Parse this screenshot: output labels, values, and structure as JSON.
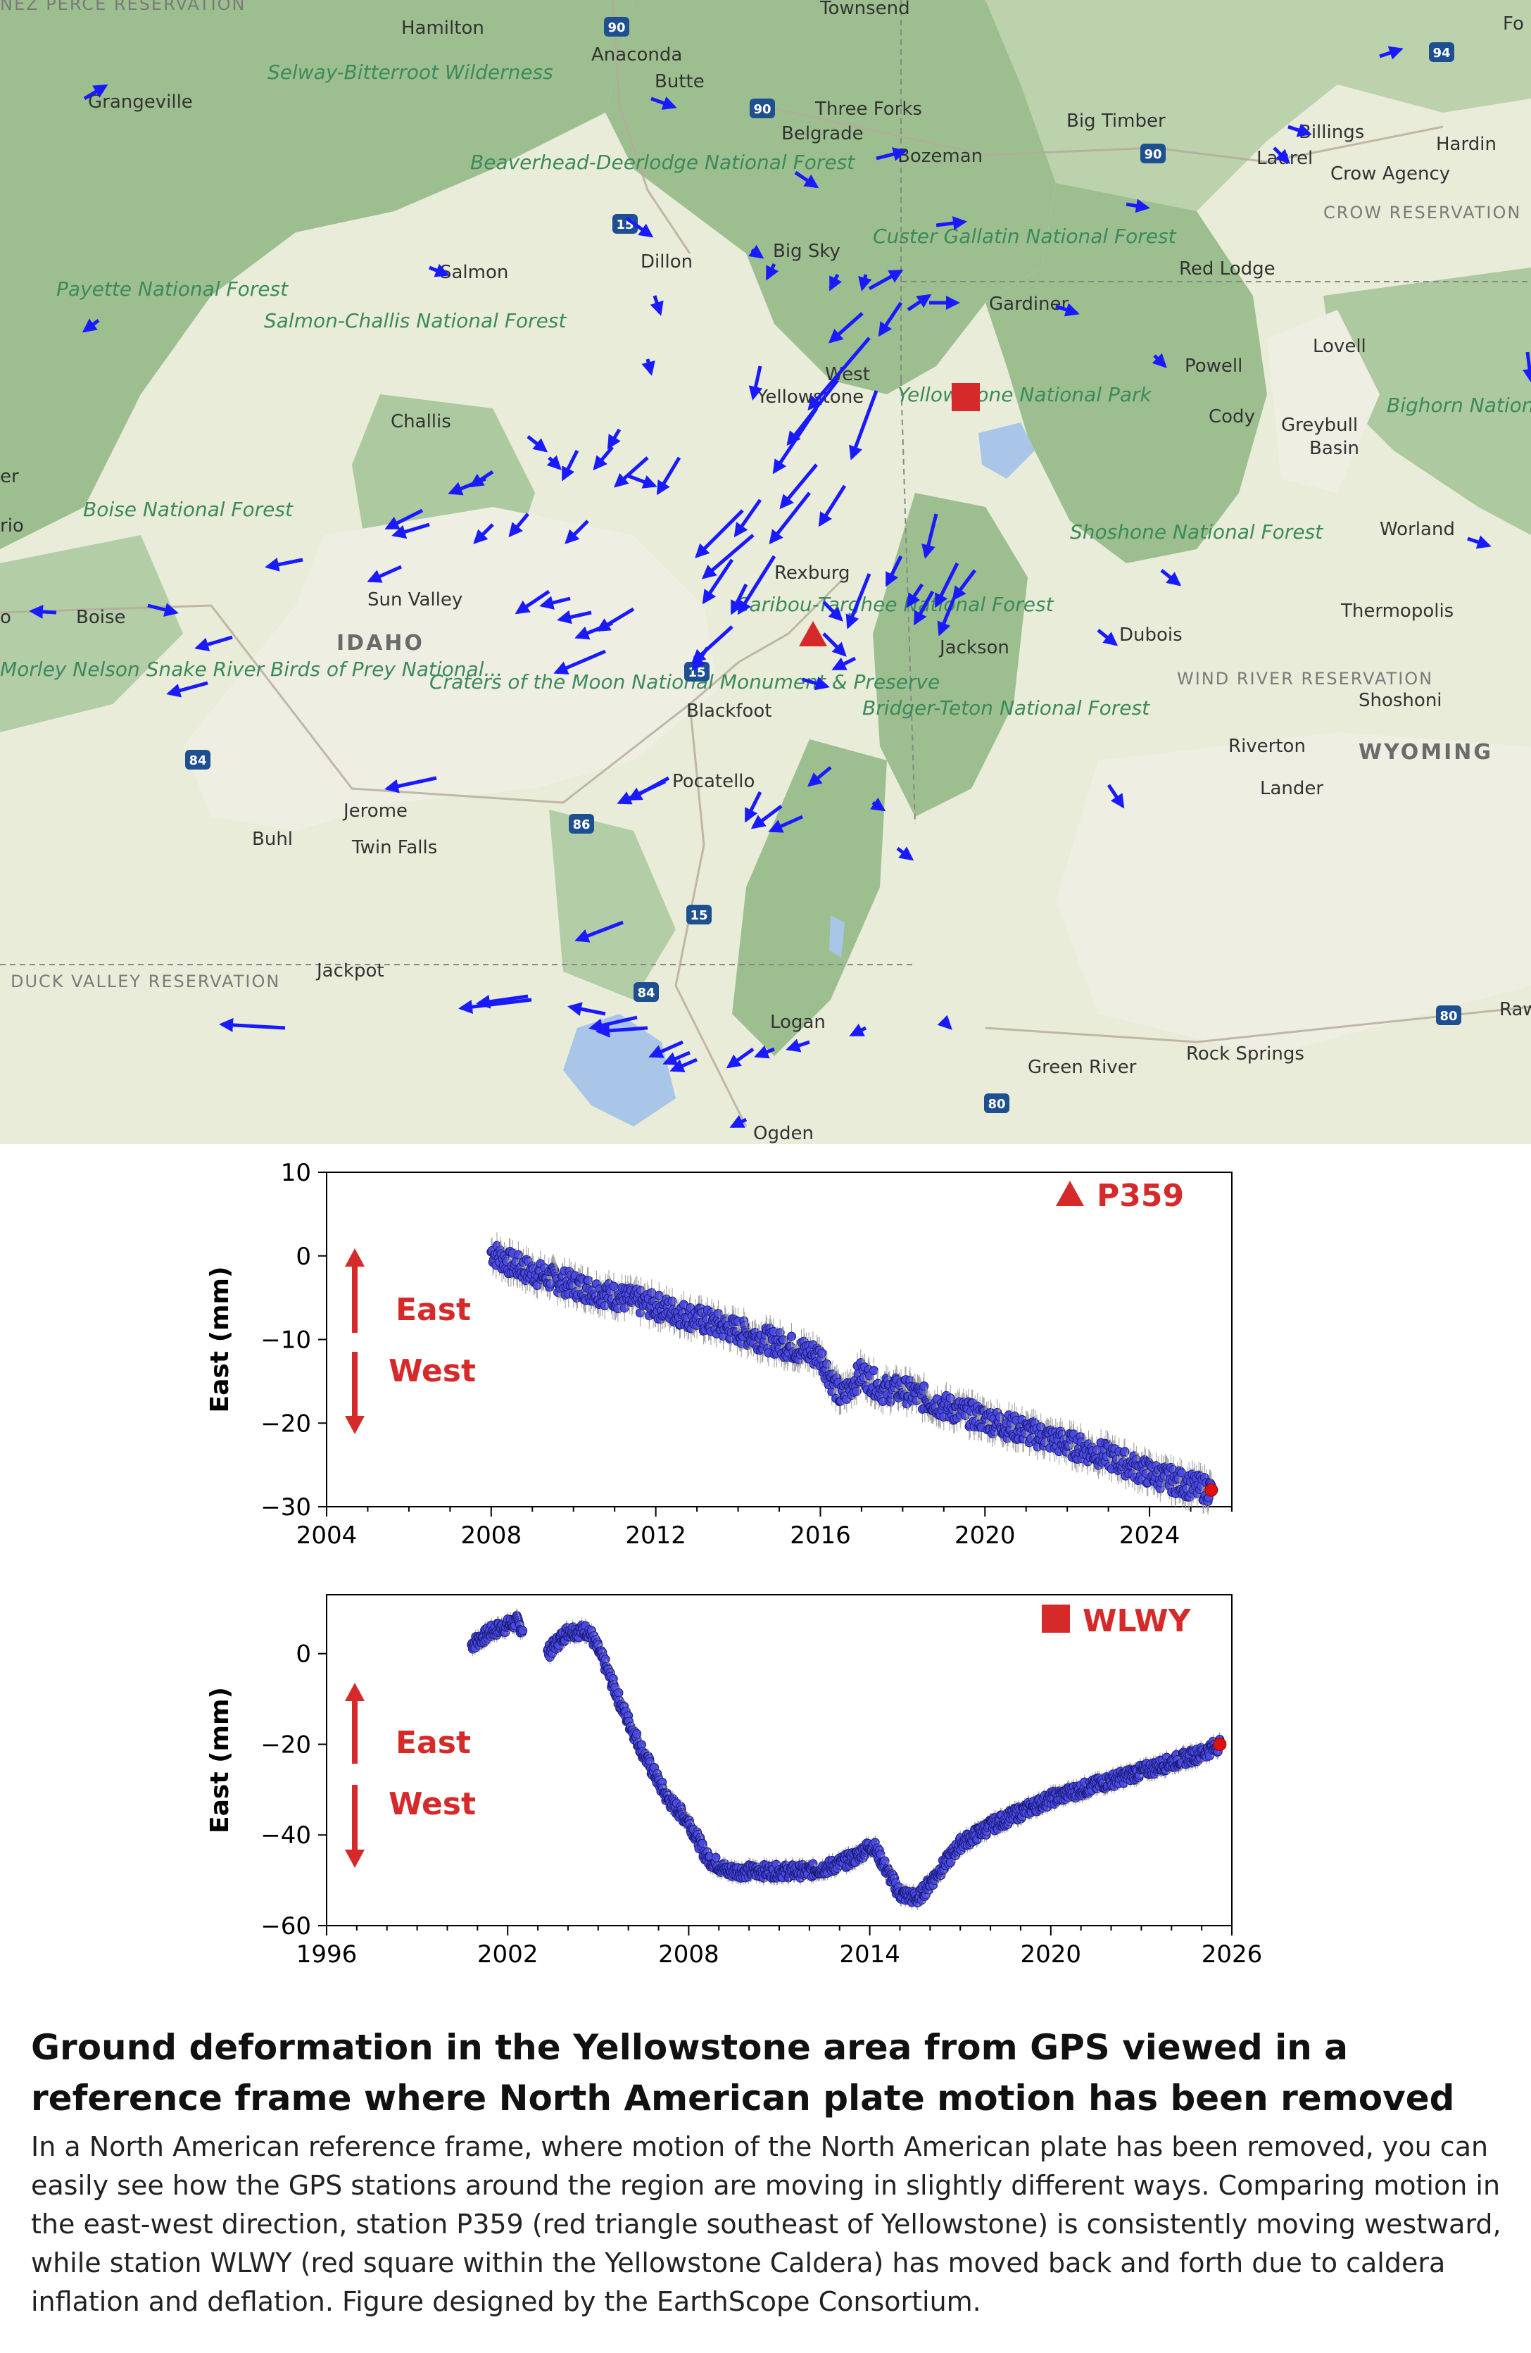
{
  "map": {
    "places": [
      "Hamilton",
      "Townsend",
      "Anaconda",
      "Butte",
      "Grangeville",
      "Three Forks",
      "Belgrade",
      "Bozeman",
      "Big Timber",
      "Billings",
      "Hardin",
      "Laurel",
      "Crow Agency",
      "Salmon",
      "Dillon",
      "Big Sky",
      "Gardiner",
      "Red Lodge",
      "Lovell",
      "Powell",
      "Cody",
      "Greybull",
      "Basin",
      "Challis",
      "West",
      "Yellowstone",
      "Worland",
      "Rexburg",
      "Thermopolis",
      "Boise",
      "Sun Valley",
      "Jackson",
      "Dubois",
      "Blackfoot",
      "Shoshoni",
      "Riverton",
      "Lander",
      "Pocatello",
      "Jerome",
      "Twin Falls",
      "Buhl",
      "Jackpot",
      "Logan",
      "Rock Springs",
      "Green River",
      "Ogden",
      "Fo",
      "Raw"
    ],
    "regions": [
      "Selway-Bitterroot Wilderness",
      "Beaverhead-Deerlodge National Forest",
      "Custer Gallatin National Forest",
      "Payette National Forest",
      "Salmon-Challis National Forest",
      "Yellowstone National Park",
      "Bighorn National Forest",
      "Boise National Forest",
      "Shoshone National Forest",
      "Caribou-Targhee National Forest",
      "Craters of the Moon National Monument & Preserve",
      "Bridger-Teton National Forest",
      "Morley Nelson Snake River Birds of Prey National..."
    ],
    "admin_labels": [
      "IDAHO",
      "WYOMING",
      "WIND RIVER RESERVATION",
      "CROW RESERVATION",
      "DUCK VALLEY RESERVATION",
      "NEZ PERCE RESERVATION"
    ],
    "partial_labels": [
      "er",
      "rio",
      "o"
    ],
    "highways": [
      "90",
      "94",
      "15",
      "84",
      "86",
      "80"
    ],
    "arrow_color": "#1a1aff",
    "marker_color": "#d62a2a",
    "stations": [
      {
        "name": "P359",
        "marker": "triangle"
      },
      {
        "name": "WLWY",
        "marker": "square"
      }
    ]
  },
  "charts": {
    "top": {
      "station": "P359",
      "marker": "triangle",
      "ylabel": "East (mm)",
      "ylim": [
        -30,
        10
      ],
      "yticks": [
        "10",
        "0",
        "−10",
        "−20",
        "−30"
      ],
      "xlim": [
        2004,
        2026
      ],
      "xticks": [
        "2004",
        "2008",
        "2012",
        "2016",
        "2020",
        "2024"
      ],
      "east_label": "East",
      "west_label": "West"
    },
    "bottom": {
      "station": "WLWY",
      "marker": "square",
      "ylabel": "East (mm)",
      "ylim": [
        -60,
        13
      ],
      "yticks": [
        "0",
        "−20",
        "−40",
        "−60"
      ],
      "xlim": [
        1996,
        2026
      ],
      "xticks": [
        "1996",
        "2002",
        "2008",
        "2014",
        "2020",
        "2026"
      ],
      "east_label": "East",
      "west_label": "West"
    }
  },
  "chart_data": [
    {
      "type": "scatter",
      "title": "P359",
      "ylabel": "East (mm)",
      "xlim": [
        2004,
        2026
      ],
      "ylim": [
        -30,
        10
      ],
      "series": [
        {
          "x": [
            2008.0,
            2008.5,
            2009,
            2010,
            2011,
            2012,
            2013,
            2014,
            2015,
            2016,
            2016.5,
            2017,
            2017.5,
            2018,
            2019,
            2020,
            2021,
            2022,
            2023,
            2024,
            2025,
            2025.5
          ],
          "y": [
            0.5,
            -1,
            -2,
            -3.5,
            -4.8,
            -6,
            -7.5,
            -9,
            -10.5,
            -12,
            -17,
            -14,
            -16,
            -16,
            -18,
            -19.5,
            -21,
            -22.5,
            -24,
            -26,
            -27.5,
            -28
          ]
        }
      ],
      "grid": false
    },
    {
      "type": "scatter",
      "title": "WLWY",
      "ylabel": "East (mm)",
      "xlim": [
        1996,
        2026
      ],
      "ylim": [
        -60,
        13
      ],
      "series": [
        {
          "x": [
            2000.8,
            2001.5,
            2002.3,
            2002.8,
            2003.3,
            2004.0,
            2004.7,
            2005.2,
            2005.8,
            2006.5,
            2007.3,
            2008.0,
            2008.6,
            2009.3,
            2010.0,
            2011.0,
            2012.0,
            2012.7,
            2013.5,
            2014.1,
            2014.5,
            2015.0,
            2015.6,
            2016.3,
            2017.0,
            2018.0,
            2019.0,
            2020.0,
            2021.0,
            2022.0,
            2023.0,
            2024.0,
            2025.0,
            2025.6
          ],
          "y": [
            2,
            5,
            7,
            3,
            0,
            5,
            5,
            -2,
            -12,
            -22,
            -32,
            -37,
            -45,
            -48,
            -48,
            -48,
            -48,
            -47,
            -45,
            -42,
            -47,
            -53,
            -54,
            -48,
            -42,
            -38,
            -35,
            -32,
            -30,
            -28,
            -26,
            -24,
            -22,
            -20
          ]
        }
      ],
      "grid": false
    }
  ],
  "caption": {
    "title": "Ground deformation in the Yellowstone area from GPS viewed in a reference frame where North American plate motion has been removed",
    "body": "In a North American reference frame, where motion of the North American plate has been removed, you can easily see how the GPS stations around the region are moving in slightly different ways. Comparing motion in the east-west direction, station P359 (red triangle southeast of Yellowstone) is consistently moving westward, while station WLWY (red square within the Yellowstone Caldera) has moved back and forth due to caldera inflation and deflation. Figure designed by the EarthScope Consortium."
  }
}
